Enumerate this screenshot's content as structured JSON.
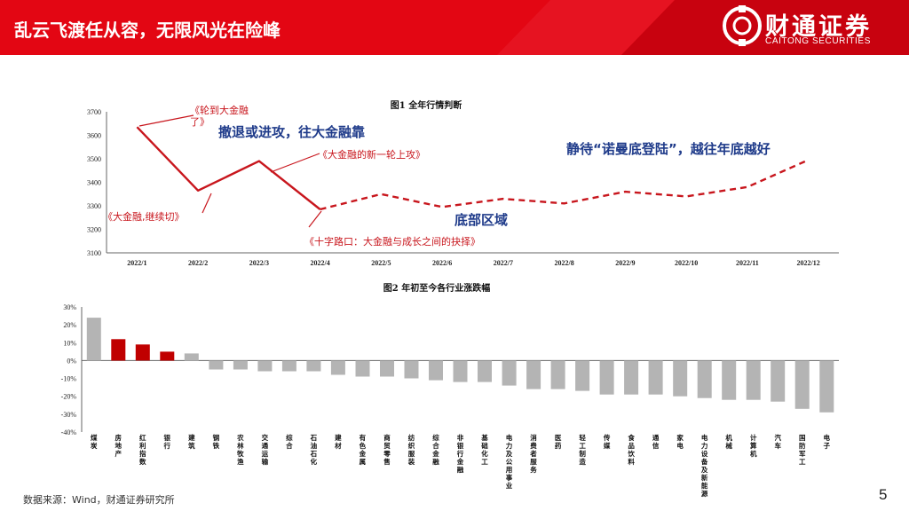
{
  "header": {
    "title": "乱云飞渡任从容，无限风光在险峰",
    "brand_cn": "财通证券",
    "brand_en": "CAITONG SECURITIES",
    "bg_color": "#e30613",
    "accent_color": "#b3000c"
  },
  "footer": {
    "source": "数据来源：Wind，财通证券研究所",
    "page": "5"
  },
  "chart_data": [
    {
      "type": "line",
      "title": "图1 全年行情判断",
      "categories": [
        "2022/1",
        "2022/2",
        "2022/3",
        "2022/4",
        "2022/5",
        "2022/6",
        "2022/7",
        "2022/8",
        "2022/9",
        "2022/10",
        "2022/11",
        "2022/12"
      ],
      "yticks": [
        3100,
        3200,
        3300,
        3400,
        3500,
        3600,
        3700
      ],
      "ylim": [
        3100,
        3700
      ],
      "grid": false,
      "line_color": "#c8161d",
      "series": [
        {
          "style": "solid",
          "points": [
            [
              0,
              3635
            ],
            [
              1,
              3365
            ],
            [
              2,
              3490
            ],
            [
              3,
              3285
            ]
          ]
        },
        {
          "style": "dashed",
          "points": [
            [
              3,
              3285
            ],
            [
              4,
              3350
            ],
            [
              5,
              3295
            ],
            [
              6,
              3330
            ],
            [
              7,
              3310
            ],
            [
              8,
              3360
            ],
            [
              9,
              3340
            ],
            [
              10,
              3380
            ],
            [
              11,
              3495
            ]
          ]
        }
      ],
      "annotations": [
        {
          "text": "《轮到大金融了》",
          "color": "#c8161d"
        },
        {
          "text": "撤退或进攻，往大金融靠",
          "color": "#1f3b8a"
        },
        {
          "text": "《大金融的新一轮上攻》",
          "color": "#c8161d"
        },
        {
          "text": "静待“诺曼底登陆”，越往年底越好",
          "color": "#1f3b8a"
        },
        {
          "text": "《大金融,继续切》",
          "color": "#c8161d"
        },
        {
          "text": "底部区域",
          "color": "#1f3b8a"
        },
        {
          "text": "《十字路口：大金融与成长之间的抉择》",
          "color": "#c8161d"
        }
      ]
    },
    {
      "type": "bar",
      "title": "图2 年初至今各行业涨跌幅",
      "ylim": [
        -40,
        30
      ],
      "yticks": [
        "30%",
        "20%",
        "10%",
        "0%",
        "-10%",
        "-20%",
        "-30%",
        "-40%"
      ],
      "ytick_values": [
        30,
        20,
        10,
        0,
        -10,
        -20,
        -30,
        -40
      ],
      "categories": [
        "煤炭",
        "房地产",
        "红利指数",
        "银行",
        "建筑",
        "钢铁",
        "农林牧渔",
        "交通运输",
        "综合",
        "石油石化",
        "建材",
        "有色金属",
        "商贸零售",
        "纺织服装",
        "综合金融",
        "非银行金融",
        "基础化工",
        "电力及公用事业",
        "消费者服务",
        "医药",
        "轻工制造",
        "传媒",
        "食品饮料",
        "通信",
        "家电",
        "电力设备及新能源",
        "机械",
        "计算机",
        "汽车",
        "国防军工",
        "电子"
      ],
      "values": [
        24,
        12,
        9,
        5,
        4,
        -5,
        -5,
        -6,
        -6,
        -6,
        -8,
        -9,
        -9,
        -10,
        -11,
        -12,
        -12,
        -14,
        -16,
        -16,
        -17,
        -19,
        -19,
        -19,
        -20,
        -21,
        -22,
        -22,
        -23,
        -27,
        -29
      ],
      "highlight": [
        1,
        2,
        3
      ],
      "bar_color": "#b4b4b4",
      "highlight_color": "#c00000"
    }
  ]
}
